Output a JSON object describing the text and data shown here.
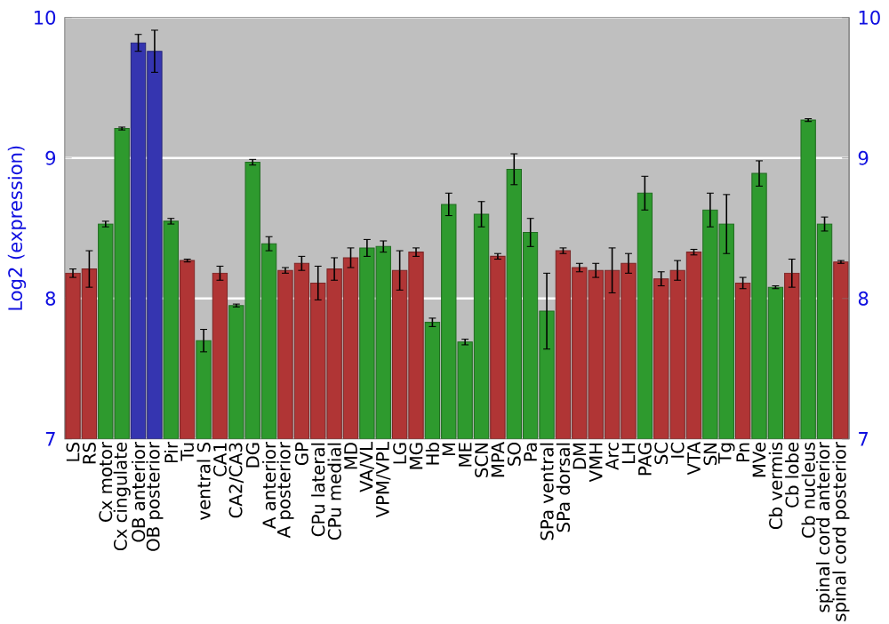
{
  "chart_data": {
    "type": "bar",
    "ylabel": "Log2 (expression)",
    "categories": [
      "LS",
      "RS",
      "Cx motor",
      "Cx cingulate",
      "OB anterior",
      "OB posterior",
      "Pir",
      "Tu",
      "ventral S",
      "CA1",
      "CA2/CA3",
      "DG",
      "A anterior",
      "A posterior",
      "GP",
      "CPu lateral",
      "CPu medial",
      "MD",
      "VA/VL",
      "VPM/VPL",
      "LG",
      "MG",
      "Hb",
      "M",
      "ME",
      "SCN",
      "MPA",
      "SO",
      "Pa",
      "SPa ventral",
      "SPa dorsal",
      "DM",
      "VMH",
      "Arc",
      "LH",
      "PAG",
      "SC",
      "IC",
      "VTA",
      "SN",
      "Tg",
      "Pn",
      "MVe",
      "Cb vermis",
      "Cb lobe",
      "Cb nucleus",
      "spinal cord anterior",
      "spinal cord posterior"
    ],
    "values": [
      8.18,
      8.21,
      8.53,
      9.21,
      9.82,
      9.76,
      8.55,
      8.27,
      7.7,
      8.18,
      7.95,
      8.97,
      8.39,
      8.2,
      8.25,
      8.11,
      8.21,
      8.29,
      8.36,
      8.37,
      8.2,
      8.33,
      7.83,
      8.67,
      7.69,
      8.6,
      8.3,
      8.92,
      8.47,
      7.91,
      8.34,
      8.22,
      8.2,
      8.2,
      8.25,
      8.75,
      8.14,
      8.2,
      8.33,
      8.63,
      8.53,
      8.11,
      8.89,
      8.08,
      8.18,
      9.27,
      8.53,
      8.26
    ],
    "errors": [
      0.03,
      0.13,
      0.02,
      0.01,
      0.06,
      0.15,
      0.02,
      0.01,
      0.08,
      0.05,
      0.01,
      0.02,
      0.05,
      0.02,
      0.05,
      0.12,
      0.08,
      0.07,
      0.06,
      0.04,
      0.14,
      0.03,
      0.03,
      0.08,
      0.02,
      0.09,
      0.02,
      0.11,
      0.1,
      0.27,
      0.02,
      0.03,
      0.05,
      0.16,
      0.07,
      0.12,
      0.05,
      0.07,
      0.02,
      0.12,
      0.21,
      0.04,
      0.09,
      0.01,
      0.1,
      0.01,
      0.05,
      0.01
    ],
    "colors": [
      "#b03535",
      "#b03535",
      "#2e9a2e",
      "#2e9a2e",
      "#3535b0",
      "#3535b0",
      "#2e9a2e",
      "#b03535",
      "#2e9a2e",
      "#b03535",
      "#2e9a2e",
      "#2e9a2e",
      "#2e9a2e",
      "#b03535",
      "#b03535",
      "#b03535",
      "#b03535",
      "#b03535",
      "#2e9a2e",
      "#2e9a2e",
      "#b03535",
      "#b03535",
      "#2e9a2e",
      "#2e9a2e",
      "#2e9a2e",
      "#2e9a2e",
      "#b03535",
      "#2e9a2e",
      "#2e9a2e",
      "#2e9a2e",
      "#b03535",
      "#b03535",
      "#b03535",
      "#b03535",
      "#b03535",
      "#2e9a2e",
      "#b03535",
      "#b03535",
      "#b03535",
      "#2e9a2e",
      "#2e9a2e",
      "#b03535",
      "#2e9a2e",
      "#2e9a2e",
      "#b03535",
      "#2e9a2e",
      "#2e9a2e",
      "#b03535"
    ],
    "ylim": [
      7,
      10
    ],
    "yticks": [
      7,
      8,
      9,
      10
    ],
    "y2lim": [
      7,
      10
    ],
    "y2ticks": [
      7,
      8,
      9,
      10
    ],
    "grid": "y"
  }
}
